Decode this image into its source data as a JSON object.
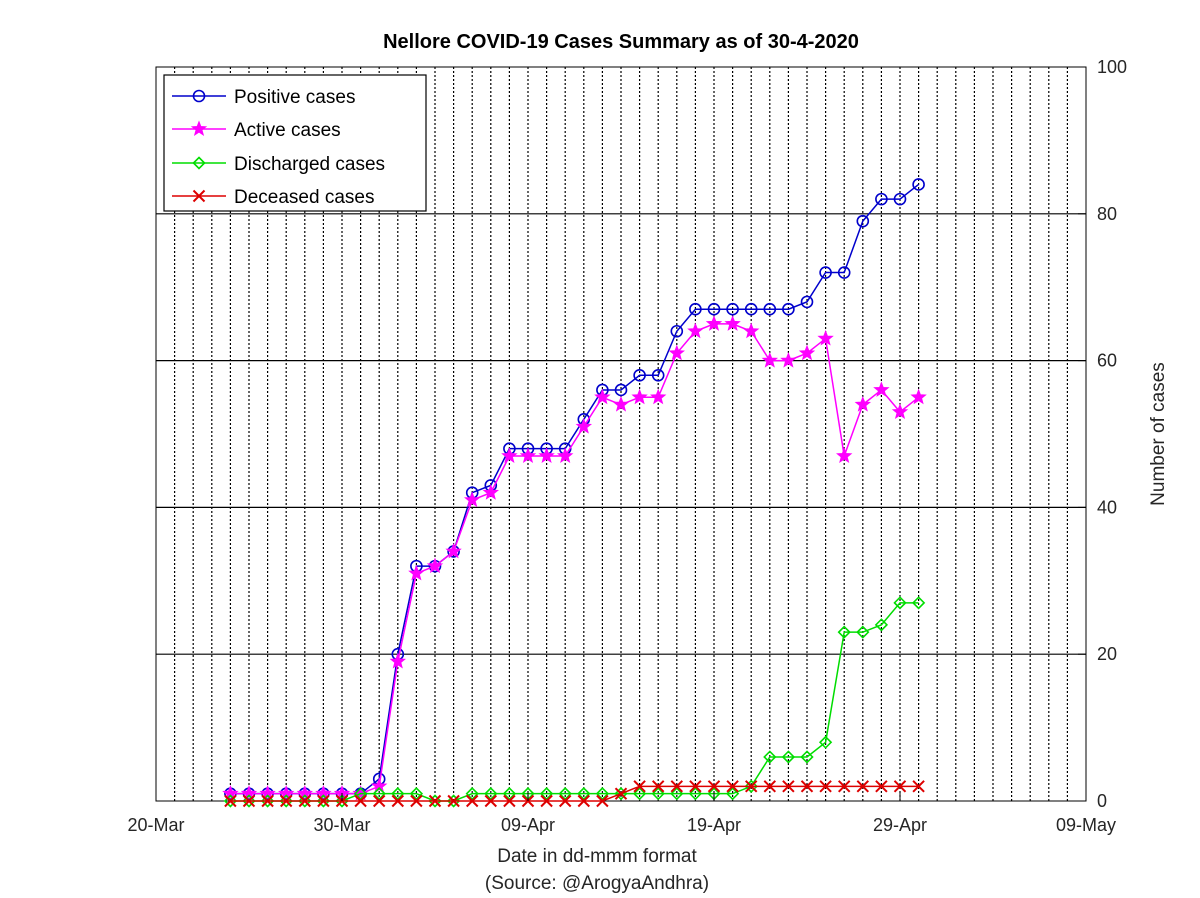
{
  "chart_data": {
    "type": "line",
    "title": "Nellore COVID-19 Cases Summary as of 30-4-2020",
    "xlabel": "Date in dd-mmm format",
    "xlabel_source": "(Source: @ArogyaAndhra)",
    "ylabel": "Number of cases",
    "y_axis_side": "right",
    "xlim": [
      "2020-03-20",
      "2020-05-09"
    ],
    "ylim": [
      0,
      100
    ],
    "x_ticks": [
      {
        "date": "2020-03-20",
        "label": "20-Mar"
      },
      {
        "date": "2020-03-30",
        "label": "30-Mar"
      },
      {
        "date": "2020-04-09",
        "label": "09-Apr"
      },
      {
        "date": "2020-04-19",
        "label": "19-Apr"
      },
      {
        "date": "2020-04-29",
        "label": "29-Apr"
      },
      {
        "date": "2020-05-09",
        "label": "09-May"
      }
    ],
    "y_ticks": [
      0,
      20,
      40,
      60,
      80,
      100
    ],
    "grid": {
      "x": "dotted daily",
      "y": "solid"
    },
    "legend_position": "top-left",
    "x": [
      "2020-03-24",
      "2020-03-25",
      "2020-03-26",
      "2020-03-27",
      "2020-03-28",
      "2020-03-29",
      "2020-03-30",
      "2020-03-31",
      "2020-04-01",
      "2020-04-02",
      "2020-04-03",
      "2020-04-04",
      "2020-04-05",
      "2020-04-06",
      "2020-04-07",
      "2020-04-08",
      "2020-04-09",
      "2020-04-10",
      "2020-04-11",
      "2020-04-12",
      "2020-04-13",
      "2020-04-14",
      "2020-04-15",
      "2020-04-16",
      "2020-04-17",
      "2020-04-18",
      "2020-04-19",
      "2020-04-20",
      "2020-04-21",
      "2020-04-22",
      "2020-04-23",
      "2020-04-24",
      "2020-04-25",
      "2020-04-26",
      "2020-04-27",
      "2020-04-28",
      "2020-04-29",
      "2020-04-30"
    ],
    "series": [
      {
        "name": "Positive cases",
        "color": "#0000cc",
        "marker": "circle",
        "values": [
          1,
          1,
          1,
          1,
          1,
          1,
          1,
          1,
          3,
          20,
          32,
          32,
          34,
          42,
          43,
          48,
          48,
          48,
          48,
          52,
          56,
          56,
          58,
          58,
          64,
          67,
          67,
          67,
          67,
          67,
          67,
          68,
          72,
          72,
          79,
          82,
          82,
          84
        ]
      },
      {
        "name": "Active cases",
        "color": "#ff00ff",
        "marker": "star",
        "values": [
          1,
          1,
          1,
          1,
          1,
          1,
          1,
          1,
          2,
          19,
          31,
          32,
          34,
          41,
          42,
          47,
          47,
          47,
          47,
          51,
          55,
          54,
          55,
          55,
          61,
          64,
          65,
          65,
          64,
          60,
          60,
          61,
          63,
          47,
          54,
          56,
          53,
          55
        ]
      },
      {
        "name": "Discharged cases",
        "color": "#00dd00",
        "marker": "diamond",
        "values": [
          0,
          0,
          0,
          0,
          0,
          0,
          0,
          1,
          1,
          1,
          1,
          0,
          0,
          1,
          1,
          1,
          1,
          1,
          1,
          1,
          1,
          1,
          1,
          1,
          1,
          1,
          1,
          1,
          2,
          6,
          6,
          6,
          8,
          23,
          23,
          24,
          27,
          27
        ]
      },
      {
        "name": "Deceased cases",
        "color": "#dd0000",
        "marker": "x",
        "values": [
          0,
          0,
          0,
          0,
          0,
          0,
          0,
          0,
          0,
          0,
          0,
          0,
          0,
          0,
          0,
          0,
          0,
          0,
          0,
          0,
          0,
          1,
          2,
          2,
          2,
          2,
          2,
          2,
          2,
          2,
          2,
          2,
          2,
          2,
          2,
          2,
          2,
          2
        ]
      }
    ]
  }
}
